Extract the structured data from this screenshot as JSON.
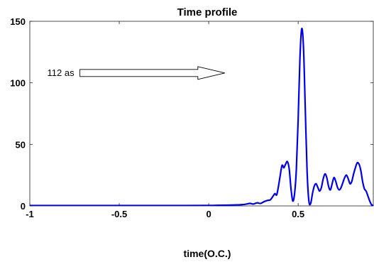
{
  "chart_data": {
    "type": "line",
    "title": "Time profile",
    "xlabel": "time(O.C.)",
    "ylabel": "",
    "xlim": [
      -1,
      0.92
    ],
    "ylim": [
      0,
      150
    ],
    "xticks": [
      -1,
      -0.5,
      0,
      0.5
    ],
    "xtick_labels": [
      "-1",
      "-0.5",
      "0",
      "0.5"
    ],
    "yticks": [
      0,
      50,
      100,
      150
    ],
    "ytick_labels": [
      "0",
      "50",
      "100",
      "150"
    ],
    "grid": false,
    "legend": "none",
    "series": [
      {
        "color": "#0000ee",
        "x": [
          -1.0,
          -0.8,
          -0.6,
          -0.4,
          -0.2,
          0.0,
          0.05,
          0.1,
          0.15,
          0.2,
          0.23,
          0.25,
          0.27,
          0.29,
          0.31,
          0.33,
          0.345,
          0.36,
          0.37,
          0.38,
          0.39,
          0.4,
          0.41,
          0.42,
          0.43,
          0.44,
          0.45,
          0.46,
          0.47,
          0.48,
          0.49,
          0.5,
          0.51,
          0.52,
          0.53,
          0.54,
          0.55,
          0.56,
          0.57,
          0.58,
          0.59,
          0.6,
          0.61,
          0.62,
          0.63,
          0.64,
          0.65,
          0.66,
          0.67,
          0.68,
          0.69,
          0.7,
          0.71,
          0.72,
          0.73,
          0.74,
          0.75,
          0.76,
          0.77,
          0.78,
          0.79,
          0.8,
          0.81,
          0.82,
          0.83,
          0.84,
          0.85,
          0.86,
          0.87,
          0.88,
          0.89,
          0.9,
          0.91,
          0.92
        ],
        "y": [
          0.3,
          0.3,
          0.3,
          0.3,
          0.3,
          0.4,
          0.5,
          0.6,
          0.8,
          1.2,
          2.0,
          1.5,
          2.5,
          2.0,
          3.5,
          4.5,
          5.0,
          8.0,
          10.0,
          9.0,
          16.0,
          25.0,
          33.0,
          31.0,
          34.0,
          36.0,
          30.0,
          14.0,
          4.0,
          10.0,
          30.0,
          70.0,
          120.0,
          144.0,
          128.0,
          78.0,
          28.0,
          4.0,
          2.0,
          10.0,
          16.0,
          18.0,
          15.0,
          12.0,
          15.0,
          22.0,
          26.0,
          23.0,
          16.0,
          13.0,
          18.0,
          23.0,
          20.0,
          15.0,
          13.0,
          15.0,
          19.0,
          23.0,
          25.0,
          22.0,
          18.0,
          20.0,
          26.0,
          31.0,
          35.0,
          34.0,
          29.0,
          20.0,
          14.0,
          12.0,
          8.0,
          4.0,
          1.0,
          0.5
        ]
      }
    ],
    "annotations": [
      {
        "text": "112 as",
        "arrow_from": [
          -0.72,
          108
        ],
        "arrow_to": [
          0.09,
          108
        ],
        "arrow_style": "hollow"
      }
    ]
  }
}
